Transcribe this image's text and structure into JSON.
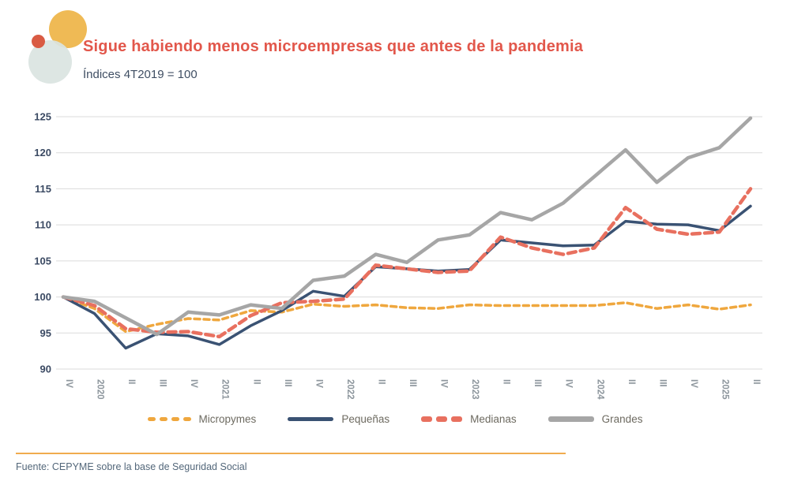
{
  "header": {
    "title": "Sigue habiendo menos microempresas que antes de la pandemia",
    "title_color": "#E2574B",
    "subtitle": "Índices 4T2019 = 100",
    "subtitle_color": "#3F4E63"
  },
  "logo": {
    "amber_color": "#EFBA55",
    "red_color": "#D95B43",
    "pale_color": "#DAE4E1"
  },
  "chart_data": {
    "type": "line",
    "x_labels": [
      "IV",
      "2020",
      "II",
      "III",
      "IV",
      "2021",
      "II",
      "III",
      "IV",
      "2022",
      "II",
      "III",
      "IV",
      "2023",
      "II",
      "III",
      "IV",
      "2024",
      "II",
      "III",
      "IV",
      "2025",
      "II"
    ],
    "series": [
      {
        "name": "Micropymes",
        "color": "#EFA73E",
        "style": "dashed",
        "width": 3.5,
        "dash": "7 5",
        "values": [
          100,
          98.4,
          95.2,
          96.2,
          97.0,
          96.8,
          98.1,
          97.9,
          99.0,
          98.7,
          98.9,
          98.5,
          98.4,
          98.9,
          98.8,
          98.8,
          98.8,
          98.8,
          99.2,
          98.4,
          98.9,
          98.3,
          98.9
        ]
      },
      {
        "name": "Pequeñas",
        "color": "#3A5273",
        "style": "solid",
        "width": 3.5,
        "dash": "",
        "values": [
          100,
          97.7,
          92.9,
          94.9,
          94.6,
          93.4,
          96.0,
          98.1,
          100.8,
          100.1,
          104.2,
          103.9,
          103.6,
          103.8,
          107.9,
          107.5,
          107.1,
          107.2,
          110.5,
          110.1,
          110.0,
          109.2,
          112.6
        ]
      },
      {
        "name": "Medianas",
        "color": "#E8705F",
        "style": "dashed",
        "width": 4.5,
        "dash": "10 6",
        "values": [
          100,
          98.8,
          95.6,
          95.1,
          95.2,
          94.5,
          97.4,
          99.2,
          99.4,
          99.7,
          104.4,
          103.9,
          103.4,
          103.6,
          108.3,
          106.8,
          105.9,
          106.8,
          112.4,
          109.4,
          108.7,
          109.0,
          115.0
        ]
      },
      {
        "name": "Grandes",
        "color": "#A6A6A6",
        "style": "solid",
        "width": 4.5,
        "dash": "",
        "values": [
          100,
          99.4,
          97.1,
          94.8,
          97.9,
          97.5,
          98.9,
          98.4,
          102.3,
          102.9,
          105.9,
          104.8,
          107.9,
          108.6,
          111.7,
          110.7,
          113.0,
          116.7,
          120.4,
          115.9,
          119.3,
          120.7,
          124.8
        ]
      }
    ],
    "ylim": [
      90,
      125
    ],
    "ytick_step": 5,
    "grid": true,
    "grid_color": "#DBDBDB",
    "axis_label_color": "#3B4A63",
    "xlabel_color": "#8C959C",
    "legend_position": "bottom",
    "title": "Sigue habiendo menos microempresas que antes de la pandemia",
    "subtitle": "Índices 4T2019 = 100"
  },
  "footer": {
    "rule_color": "#F0AC4E",
    "source": "Fuente: CEPYME sobre la base de Seguridad Social",
    "source_color": "#53677A"
  }
}
